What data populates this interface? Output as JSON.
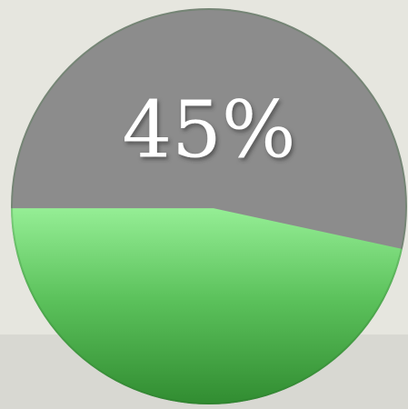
{
  "chart_data": {
    "type": "liquid",
    "values": [
      45
    ],
    "value_labels": [
      "45%"
    ],
    "ylim": [
      0,
      100
    ],
    "color": "#4fbf4f",
    "track_color": "#8c8c8c"
  }
}
